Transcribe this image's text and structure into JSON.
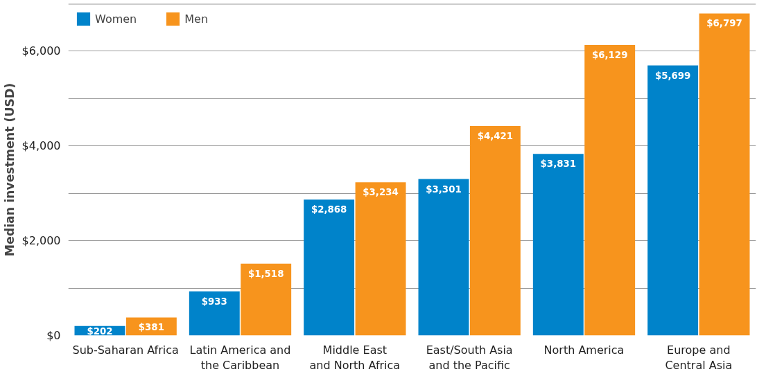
{
  "chart_data": {
    "type": "bar",
    "ylabel": "Median investment (USD)",
    "categories": [
      "Sub-Saharan Africa",
      "Latin America and\nthe Caribbean",
      "Middle East\nand North Africa",
      "East/South Asia\nand the Pacific",
      "North America",
      "Europe and\nCentral Asia"
    ],
    "series": [
      {
        "name": "Women",
        "color": "#0083ca",
        "values": [
          202,
          933,
          2868,
          3301,
          3831,
          5699
        ],
        "value_labels": [
          "$202",
          "$933",
          "$2,868",
          "$3,301",
          "$3,831",
          "$5,699"
        ]
      },
      {
        "name": "Men",
        "color": "#f7941d",
        "values": [
          381,
          1518,
          3234,
          4421,
          6129,
          6797
        ],
        "value_labels": [
          "$381",
          "$1,518",
          "$3,234",
          "$4,421",
          "$6,129",
          "$6,797"
        ]
      }
    ],
    "ylim": [
      0,
      7000
    ],
    "yticks": [
      {
        "value": 0,
        "label": "$0"
      },
      {
        "value": 1000,
        "label": null
      },
      {
        "value": 2000,
        "label": "$2,000"
      },
      {
        "value": 3000,
        "label": null
      },
      {
        "value": 4000,
        "label": "$4,000"
      },
      {
        "value": 5000,
        "label": null
      },
      {
        "value": 6000,
        "label": "$6,000"
      },
      {
        "value": 7000,
        "label": null
      }
    ],
    "grid": "y",
    "legend": "top left"
  }
}
